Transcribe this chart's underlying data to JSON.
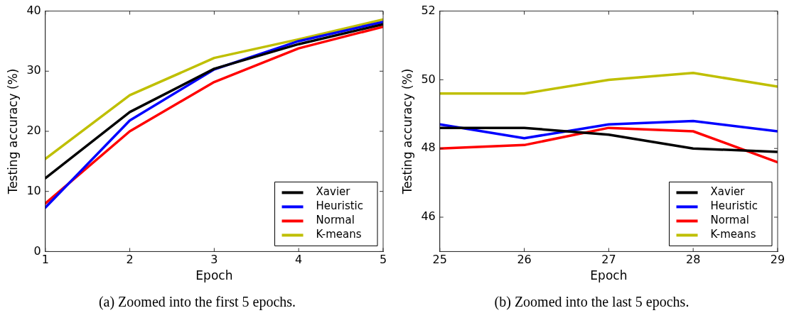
{
  "chart_data": [
    {
      "type": "line",
      "xlabel": "Epoch",
      "ylabel": "Testing accuracy (%)",
      "x": [
        1,
        2,
        3,
        4,
        5
      ],
      "xlim": [
        1,
        5
      ],
      "xticks": [
        1,
        2,
        3,
        4,
        5
      ],
      "ylim": [
        0,
        40
      ],
      "yticks": [
        0,
        10,
        20,
        30,
        40
      ],
      "grid": false,
      "legend": "bottom right",
      "marker": "none",
      "line_style": "solid",
      "series": [
        {
          "name": "Xavier",
          "color": "#000000",
          "values": [
            12.2,
            23.2,
            30.4,
            34.5,
            37.8
          ]
        },
        {
          "name": "Heuristic",
          "color": "#0000ff",
          "values": [
            7.3,
            21.8,
            30.3,
            35.0,
            38.2
          ]
        },
        {
          "name": "Normal",
          "color": "#ff0000",
          "values": [
            8.0,
            20.0,
            28.2,
            33.8,
            37.4
          ]
        },
        {
          "name": "K-means",
          "color": "#bfbf00",
          "values": [
            15.4,
            26.0,
            32.2,
            35.3,
            38.6
          ]
        }
      ],
      "annotations": [
        "(a)  Zoomed into the first 5 epochs."
      ]
    },
    {
      "type": "line",
      "xlabel": "Epoch",
      "ylabel": "Testing accuracy (%)",
      "x": [
        25,
        26,
        27,
        28,
        29
      ],
      "xlim": [
        25,
        29
      ],
      "xticks": [
        25,
        26,
        27,
        28,
        29
      ],
      "ylim": [
        45,
        52
      ],
      "yticks": [
        46,
        48,
        50,
        52
      ],
      "grid": false,
      "legend": "bottom right",
      "marker": "none",
      "line_style": "solid",
      "series": [
        {
          "name": "Xavier",
          "color": "#000000",
          "values": [
            48.6,
            48.6,
            48.4,
            48.0,
            47.9
          ]
        },
        {
          "name": "Heuristic",
          "color": "#0000ff",
          "values": [
            48.7,
            48.3,
            48.7,
            48.8,
            48.5
          ]
        },
        {
          "name": "Normal",
          "color": "#ff0000",
          "values": [
            48.0,
            48.1,
            48.6,
            48.5,
            47.6
          ]
        },
        {
          "name": "K-means",
          "color": "#bfbf00",
          "values": [
            49.6,
            49.6,
            50.0,
            50.2,
            49.8
          ]
        }
      ],
      "annotations": [
        "(b)  Zoomed into the last 5 epochs."
      ]
    }
  ]
}
